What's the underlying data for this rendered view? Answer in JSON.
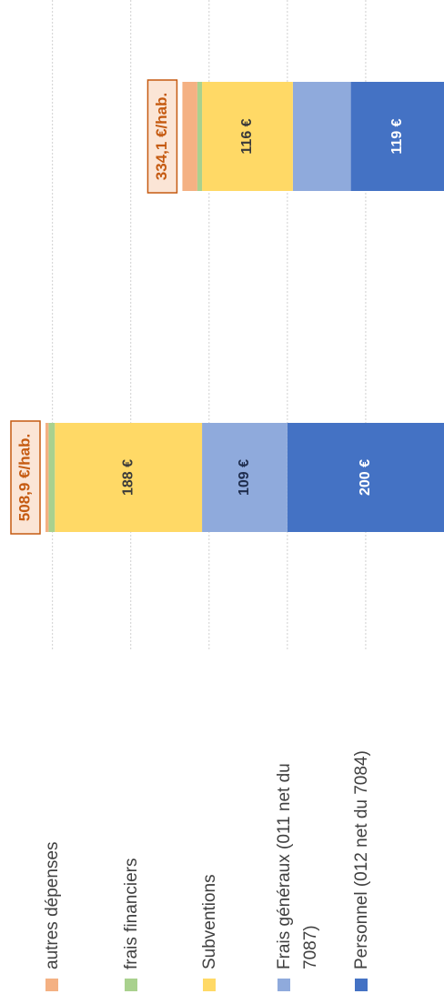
{
  "chart_data": {
    "type": "stacked-bar",
    "categories": [
      null,
      null
    ],
    "series": [
      {
        "name": "Personnel (012 net du 7084)",
        "color": "#4472c4",
        "values": [
          200,
          119
        ],
        "value_labels": [
          "200 €",
          "119 €"
        ],
        "label_color": "#ffffff"
      },
      {
        "name": "Frais généraux (011 net du 7087)",
        "color": "#8faadc",
        "values": [
          109,
          74
        ],
        "value_labels": [
          "109 €",
          null
        ],
        "label_color": "#1f2d4d"
      },
      {
        "name": "Subventions",
        "color": "#ffd966",
        "values": [
          188,
          116
        ],
        "value_labels": [
          "188 €",
          "116 €"
        ],
        "label_color": "#3a3a3a"
      },
      {
        "name": "frais financiers",
        "color": "#a9d18e",
        "values": [
          8,
          6
        ]
      },
      {
        "name": "autres dépenses",
        "color": "#f4b183",
        "values": [
          3.9,
          19.1
        ]
      }
    ],
    "totals": [
      508.9,
      334.1
    ],
    "total_labels": [
      "508,9 €/hab.",
      "334,1 €/hab."
    ],
    "xlim": [
      0,
      567
    ],
    "xticks": [
      100,
      200,
      300,
      400,
      500
    ],
    "grid": true
  }
}
